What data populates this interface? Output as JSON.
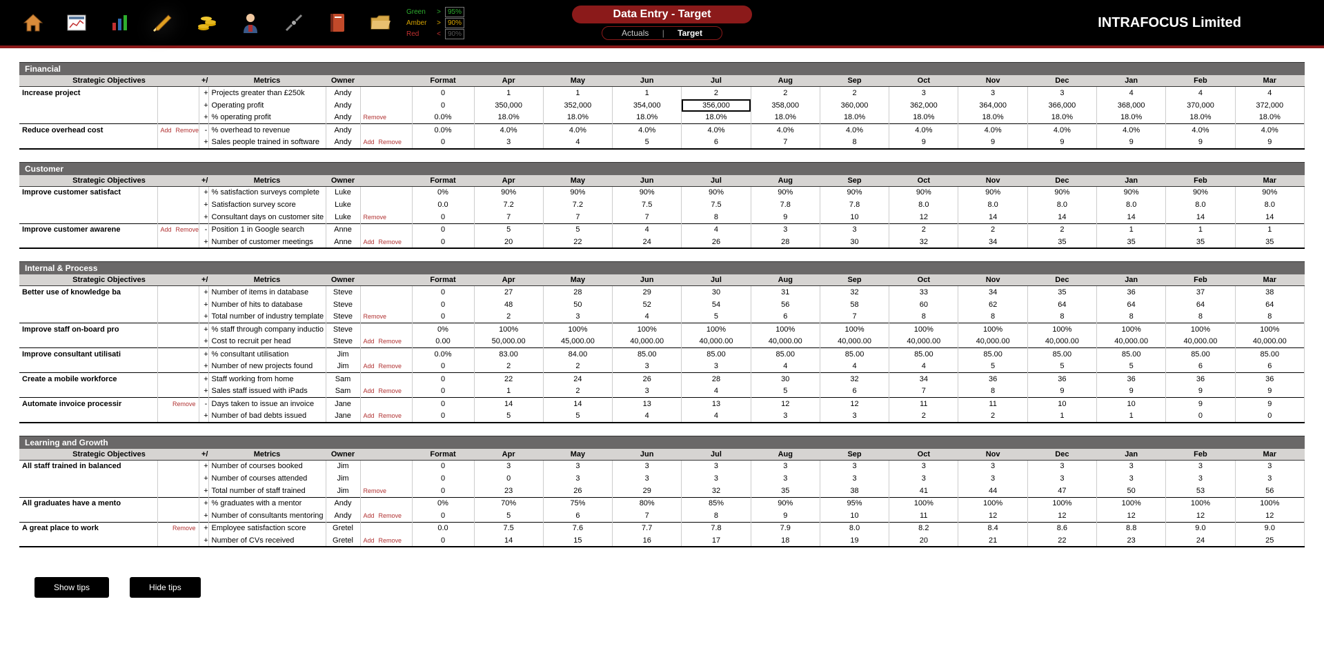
{
  "header": {
    "rag": [
      {
        "label": "Green",
        "color": "#2eae2e",
        "op": ">",
        "val": "95%",
        "val_color": "#2eae2e"
      },
      {
        "label": "Amber",
        "color": "#d6a300",
        "op": ">",
        "val": "90%",
        "val_color": "#d6a300"
      },
      {
        "label": "Red",
        "color": "#c23030",
        "op": "<",
        "val": "90%",
        "val_color": "#555555"
      }
    ],
    "title": "Data Entry - Target",
    "tab_actuals": "Actuals",
    "tab_target": "Target",
    "company": "INTRAFOCUS Limited",
    "icons": [
      "home-icon",
      "dashboard-icon",
      "chart-icon",
      "edit-icon",
      "coins-icon",
      "user-icon",
      "settings-icon",
      "folder-icon",
      "open-folder-icon"
    ]
  },
  "column_headers": {
    "obj": "Strategic Objectives",
    "pm": "+/-",
    "metric": "Metrics",
    "owner": "Owner",
    "format": "Format",
    "months": [
      "Apr",
      "May",
      "Jun",
      "Jul",
      "Aug",
      "Sep",
      "Oct",
      "Nov",
      "Dec",
      "Jan",
      "Feb",
      "Mar"
    ]
  },
  "labels": {
    "add": "Add",
    "remove": "Remove"
  },
  "highlight": {
    "section": 0,
    "row_idx": 1,
    "month_idx": 3
  },
  "sections": [
    {
      "title": "Financial",
      "objectives": [
        {
          "name": "Increase project",
          "obj_actions": [],
          "metrics": [
            {
              "pm": "+",
              "name": "Projects greater than £250k",
              "owner": "Andy",
              "actions": [],
              "fmt": "0",
              "values": [
                "1",
                "1",
                "1",
                "2",
                "2",
                "2",
                "3",
                "3",
                "3",
                "4",
                "4",
                "4"
              ]
            },
            {
              "pm": "+",
              "name": "Operating profit",
              "owner": "Andy",
              "actions": [],
              "fmt": "0",
              "values": [
                "350,000",
                "352,000",
                "354,000",
                "356,000",
                "358,000",
                "360,000",
                "362,000",
                "364,000",
                "366,000",
                "368,000",
                "370,000",
                "372,000"
              ]
            },
            {
              "pm": "+",
              "name": "% operating profit",
              "owner": "Andy",
              "actions": [
                "remove"
              ],
              "fmt": "0.0%",
              "values": [
                "18.0%",
                "18.0%",
                "18.0%",
                "18.0%",
                "18.0%",
                "18.0%",
                "18.0%",
                "18.0%",
                "18.0%",
                "18.0%",
                "18.0%",
                "18.0%"
              ]
            }
          ]
        },
        {
          "name": "Reduce overhead cost",
          "obj_actions": [
            "add",
            "remove"
          ],
          "metrics": [
            {
              "pm": "-",
              "name": "% overhead to revenue",
              "owner": "Andy",
              "actions": [],
              "fmt": "0.0%",
              "values": [
                "4.0%",
                "4.0%",
                "4.0%",
                "4.0%",
                "4.0%",
                "4.0%",
                "4.0%",
                "4.0%",
                "4.0%",
                "4.0%",
                "4.0%",
                "4.0%"
              ]
            },
            {
              "pm": "+",
              "name": "Sales people trained in software",
              "owner": "Andy",
              "actions": [
                "add",
                "remove"
              ],
              "fmt": "0",
              "values": [
                "3",
                "4",
                "5",
                "6",
                "7",
                "8",
                "9",
                "9",
                "9",
                "9",
                "9",
                "9"
              ]
            }
          ]
        }
      ]
    },
    {
      "title": "Customer",
      "objectives": [
        {
          "name": "Improve customer satisfact",
          "obj_actions": [],
          "metrics": [
            {
              "pm": "+",
              "name": "% satisfaction surveys complete",
              "owner": "Luke",
              "actions": [],
              "fmt": "0%",
              "values": [
                "90%",
                "90%",
                "90%",
                "90%",
                "90%",
                "90%",
                "90%",
                "90%",
                "90%",
                "90%",
                "90%",
                "90%"
              ]
            },
            {
              "pm": "+",
              "name": "Satisfaction survey score",
              "owner": "Luke",
              "actions": [],
              "fmt": "0.0",
              "values": [
                "7.2",
                "7.2",
                "7.5",
                "7.5",
                "7.8",
                "7.8",
                "8.0",
                "8.0",
                "8.0",
                "8.0",
                "8.0",
                "8.0"
              ]
            },
            {
              "pm": "+",
              "name": "Consultant days on customer site",
              "owner": "Luke",
              "actions": [
                "remove"
              ],
              "fmt": "0",
              "values": [
                "7",
                "7",
                "7",
                "8",
                "9",
                "10",
                "12",
                "14",
                "14",
                "14",
                "14",
                "14"
              ]
            }
          ]
        },
        {
          "name": "Improve customer awarene",
          "obj_actions": [
            "add",
            "remove"
          ],
          "metrics": [
            {
              "pm": "-",
              "name": "Position 1 in Google search",
              "owner": "Anne",
              "actions": [],
              "fmt": "0",
              "values": [
                "5",
                "5",
                "4",
                "4",
                "3",
                "3",
                "2",
                "2",
                "2",
                "1",
                "1",
                "1"
              ]
            },
            {
              "pm": "+",
              "name": "Number of customer meetings",
              "owner": "Anne",
              "actions": [
                "add",
                "remove"
              ],
              "fmt": "0",
              "values": [
                "20",
                "22",
                "24",
                "26",
                "28",
                "30",
                "32",
                "34",
                "35",
                "35",
                "35",
                "35"
              ]
            }
          ]
        }
      ]
    },
    {
      "title": "Internal & Process",
      "objectives": [
        {
          "name": "Better use of knowledge ba",
          "obj_actions": [],
          "metrics": [
            {
              "pm": "+",
              "name": "Number of items in database",
              "owner": "Steve",
              "actions": [],
              "fmt": "0",
              "values": [
                "27",
                "28",
                "29",
                "30",
                "31",
                "32",
                "33",
                "34",
                "35",
                "36",
                "37",
                "38"
              ]
            },
            {
              "pm": "+",
              "name": "Number of hits to database",
              "owner": "Steve",
              "actions": [],
              "fmt": "0",
              "values": [
                "48",
                "50",
                "52",
                "54",
                "56",
                "58",
                "60",
                "62",
                "64",
                "64",
                "64",
                "64"
              ]
            },
            {
              "pm": "+",
              "name": "Total number of industry template",
              "owner": "Steve",
              "actions": [
                "remove"
              ],
              "fmt": "0",
              "values": [
                "2",
                "3",
                "4",
                "5",
                "6",
                "7",
                "8",
                "8",
                "8",
                "8",
                "8",
                "8"
              ]
            }
          ]
        },
        {
          "name": "Improve staff on-board pro",
          "obj_actions": [],
          "metrics": [
            {
              "pm": "+",
              "name": "% staff through company inductio",
              "owner": "Steve",
              "actions": [],
              "fmt": "0%",
              "values": [
                "100%",
                "100%",
                "100%",
                "100%",
                "100%",
                "100%",
                "100%",
                "100%",
                "100%",
                "100%",
                "100%",
                "100%"
              ]
            },
            {
              "pm": "+",
              "name": "Cost to recruit per head",
              "owner": "Steve",
              "actions": [
                "add",
                "remove"
              ],
              "fmt": "0.00",
              "values": [
                "50,000.00",
                "45,000.00",
                "40,000.00",
                "40,000.00",
                "40,000.00",
                "40,000.00",
                "40,000.00",
                "40,000.00",
                "40,000.00",
                "40,000.00",
                "40,000.00",
                "40,000.00"
              ]
            }
          ]
        },
        {
          "name": "Improve consultant utilisati",
          "obj_actions": [],
          "metrics": [
            {
              "pm": "+",
              "name": "% consultant utilisation",
              "owner": "Jim",
              "actions": [],
              "fmt": "0.0%",
              "values": [
                "83.00",
                "84.00",
                "85.00",
                "85.00",
                "85.00",
                "85.00",
                "85.00",
                "85.00",
                "85.00",
                "85.00",
                "85.00",
                "85.00"
              ]
            },
            {
              "pm": "+",
              "name": "Number of new projects found",
              "owner": "Jim",
              "actions": [
                "add",
                "remove"
              ],
              "fmt": "0",
              "values": [
                "2",
                "2",
                "3",
                "3",
                "4",
                "4",
                "4",
                "5",
                "5",
                "5",
                "6",
                "6"
              ]
            }
          ]
        },
        {
          "name": "Create a mobile workforce",
          "obj_actions": [],
          "metrics": [
            {
              "pm": "+",
              "name": "Staff working from home",
              "owner": "Sam",
              "actions": [],
              "fmt": "0",
              "values": [
                "22",
                "24",
                "26",
                "28",
                "30",
                "32",
                "34",
                "36",
                "36",
                "36",
                "36",
                "36"
              ]
            },
            {
              "pm": "+",
              "name": "Sales staff issued with iPads",
              "owner": "Sam",
              "actions": [
                "add",
                "remove"
              ],
              "fmt": "0",
              "values": [
                "1",
                "2",
                "3",
                "4",
                "5",
                "6",
                "7",
                "8",
                "9",
                "9",
                "9",
                "9"
              ]
            }
          ]
        },
        {
          "name": "Automate invoice processir",
          "obj_actions": [
            "remove"
          ],
          "metrics": [
            {
              "pm": "-",
              "name": "Days taken to issue an invoice",
              "owner": "Jane",
              "actions": [],
              "fmt": "0",
              "values": [
                "14",
                "14",
                "13",
                "13",
                "12",
                "12",
                "11",
                "11",
                "10",
                "10",
                "9",
                "9"
              ]
            },
            {
              "pm": "+",
              "name": "Number of bad debts issued",
              "owner": "Jane",
              "actions": [
                "add",
                "remove"
              ],
              "fmt": "0",
              "values": [
                "5",
                "5",
                "4",
                "4",
                "3",
                "3",
                "2",
                "2",
                "1",
                "1",
                "0",
                "0"
              ]
            }
          ]
        }
      ]
    },
    {
      "title": "Learning and Growth",
      "objectives": [
        {
          "name": "All staff trained in balanced",
          "obj_actions": [],
          "metrics": [
            {
              "pm": "+",
              "name": "Number of courses booked",
              "owner": "Jim",
              "actions": [],
              "fmt": "0",
              "values": [
                "3",
                "3",
                "3",
                "3",
                "3",
                "3",
                "3",
                "3",
                "3",
                "3",
                "3",
                "3"
              ]
            },
            {
              "pm": "+",
              "name": "Number of courses attended",
              "owner": "Jim",
              "actions": [],
              "fmt": "0",
              "values": [
                "0",
                "3",
                "3",
                "3",
                "3",
                "3",
                "3",
                "3",
                "3",
                "3",
                "3",
                "3"
              ]
            },
            {
              "pm": "+",
              "name": "Total number of staff trained",
              "owner": "Jim",
              "actions": [
                "remove"
              ],
              "fmt": "0",
              "values": [
                "23",
                "26",
                "29",
                "32",
                "35",
                "38",
                "41",
                "44",
                "47",
                "50",
                "53",
                "56"
              ]
            }
          ]
        },
        {
          "name": "All graduates have a mento",
          "obj_actions": [],
          "metrics": [
            {
              "pm": "+",
              "name": "% graduates with a mentor",
              "owner": "Andy",
              "actions": [],
              "fmt": "0%",
              "values": [
                "70%",
                "75%",
                "80%",
                "85%",
                "90%",
                "95%",
                "100%",
                "100%",
                "100%",
                "100%",
                "100%",
                "100%"
              ]
            },
            {
              "pm": "+",
              "name": "Number of consultants mentoring",
              "owner": "Andy",
              "actions": [
                "add",
                "remove"
              ],
              "fmt": "0",
              "values": [
                "5",
                "6",
                "7",
                "8",
                "9",
                "10",
                "11",
                "12",
                "12",
                "12",
                "12",
                "12"
              ]
            }
          ]
        },
        {
          "name": "A great place to work",
          "obj_actions": [
            "remove"
          ],
          "metrics": [
            {
              "pm": "+",
              "name": "Employee satisfaction score",
              "owner": "Gretel",
              "actions": [],
              "fmt": "0.0",
              "values": [
                "7.5",
                "7.6",
                "7.7",
                "7.8",
                "7.9",
                "8.0",
                "8.2",
                "8.4",
                "8.6",
                "8.8",
                "9.0",
                "9.0"
              ]
            },
            {
              "pm": "+",
              "name": "Number of CVs received",
              "owner": "Gretel",
              "actions": [
                "add",
                "remove"
              ],
              "fmt": "0",
              "values": [
                "14",
                "15",
                "16",
                "17",
                "18",
                "19",
                "20",
                "21",
                "22",
                "23",
                "24",
                "25"
              ]
            }
          ]
        }
      ]
    }
  ],
  "buttons": {
    "show_tips": "Show tips",
    "hide_tips": "Hide tips"
  }
}
